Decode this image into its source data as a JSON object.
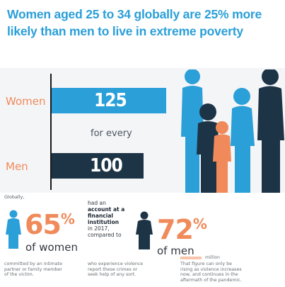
{
  "title": "Women aged 25 to 34 globally are 25% more likely than men to live in extreme poverty",
  "colors": {
    "title": "#2a9fd8",
    "women_bar": "#2a9fd8",
    "men_bar": "#1d3446",
    "accent_orange": "#f08a5a",
    "dark_figure": "#1d3446"
  },
  "chart_data": {
    "type": "bar",
    "orientation": "horizontal",
    "categories": [
      "Women",
      "Men"
    ],
    "values": [
      125,
      100
    ],
    "annotation": "for every",
    "xlim": [
      0,
      125
    ],
    "grid": false
  },
  "bottom": {
    "top_fragment": "Globally,",
    "women_stat": {
      "value": "65",
      "unit": "%",
      "label": "of women"
    },
    "men_stat": {
      "value": "72",
      "unit": "%",
      "label": "of men"
    },
    "middle_text": {
      "pre": "had an",
      "bold": "account at a financial institution",
      "post": "in 2017, compared to"
    },
    "fragments": {
      "left_line1": "committed by an intimate",
      "left_line2": "partner or family member",
      "left_line3": "of the victim.",
      "mid_line1": "who experience violence",
      "mid_line2": "report these crimes or",
      "mid_line3": "seek help of any sort.",
      "right_head": "million",
      "right_line1": "That figure can only be",
      "right_line2": "rising as violence increases",
      "right_line3": "now, and continues in the",
      "right_line4": "aftermath of the pandemic."
    }
  }
}
